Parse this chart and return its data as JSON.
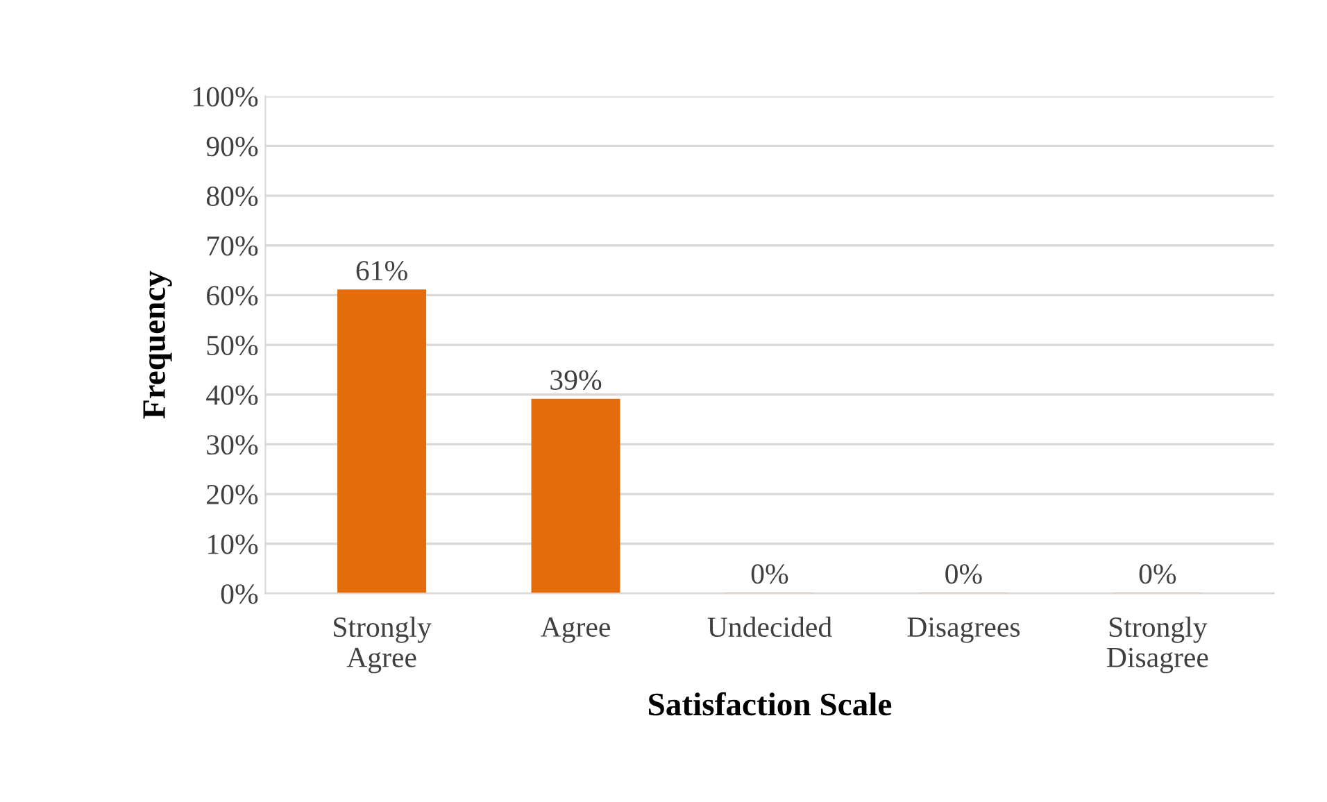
{
  "chart_data": {
    "type": "bar",
    "xlabel": "Satisfaction Scale",
    "ylabel": "Frequency",
    "categories": [
      "Strongly\nAgree",
      "Agree",
      "Undecided",
      "Disagrees",
      "Strongly\nDisagree"
    ],
    "values": [
      61,
      39,
      0,
      0,
      0
    ],
    "color": "#e46c0a",
    "value_labels": [
      "61%",
      "39%",
      "0%",
      "0%",
      "0%"
    ],
    "ylim": [
      0,
      100
    ],
    "yticks": [
      {
        "value": 0,
        "label": "0%"
      },
      {
        "value": 10,
        "label": "10%"
      },
      {
        "value": 20,
        "label": "20%"
      },
      {
        "value": 30,
        "label": "30%"
      },
      {
        "value": 40,
        "label": "40%"
      },
      {
        "value": 50,
        "label": "50%"
      },
      {
        "value": 60,
        "label": "60%"
      },
      {
        "value": 70,
        "label": "70%"
      },
      {
        "value": 80,
        "label": "80%"
      },
      {
        "value": 90,
        "label": "90%"
      },
      {
        "value": 100,
        "label": "100%"
      }
    ],
    "grid": "y"
  }
}
